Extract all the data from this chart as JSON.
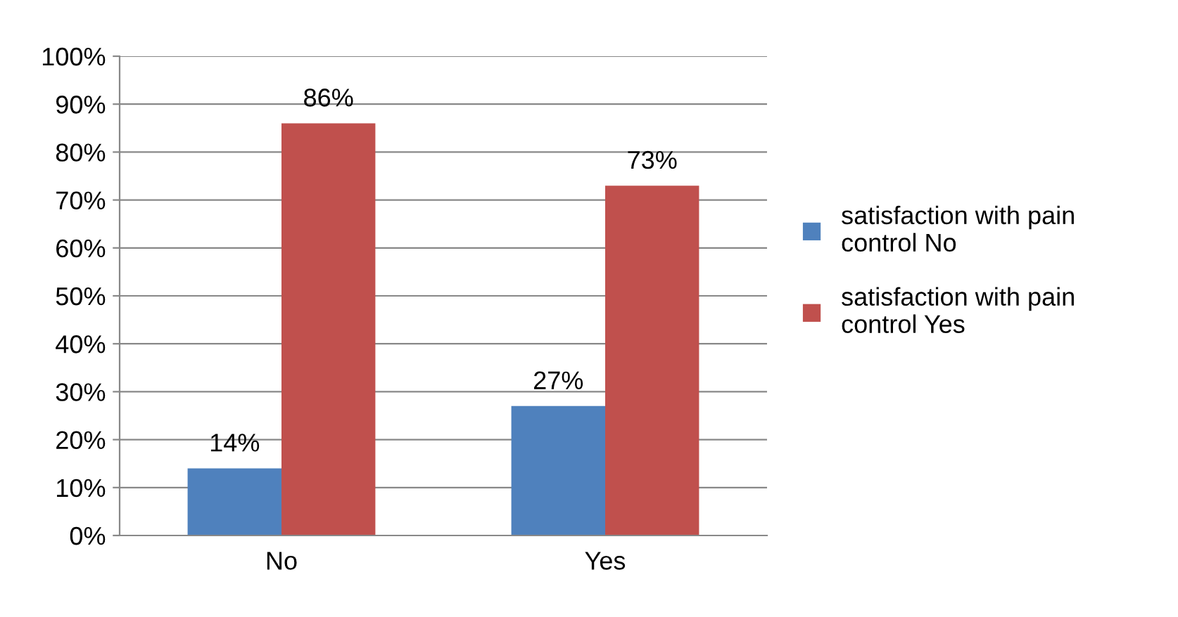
{
  "chart_data": {
    "type": "bar",
    "categories": [
      "No",
      "Yes"
    ],
    "series": [
      {
        "name": "satisfaction with pain control No",
        "color": "#4f81bd",
        "values": [
          14,
          27
        ],
        "value_labels": [
          "14%",
          "27%"
        ]
      },
      {
        "name": "satisfaction with pain control Yes",
        "color": "#c0504d",
        "values": [
          86,
          73
        ],
        "value_labels": [
          "86%",
          "73%"
        ]
      }
    ],
    "ylim": [
      0,
      100
    ],
    "yticks": [
      {
        "value": 0,
        "label": "0%"
      },
      {
        "value": 10,
        "label": "10%"
      },
      {
        "value": 20,
        "label": "20%"
      },
      {
        "value": 30,
        "label": "30%"
      },
      {
        "value": 40,
        "label": "40%"
      },
      {
        "value": 50,
        "label": "50%"
      },
      {
        "value": 60,
        "label": "60%"
      },
      {
        "value": 70,
        "label": "70%"
      },
      {
        "value": 80,
        "label": "80%"
      },
      {
        "value": 90,
        "label": "90%"
      },
      {
        "value": 100,
        "label": "100%"
      }
    ],
    "grid": "y",
    "legend": "right"
  }
}
